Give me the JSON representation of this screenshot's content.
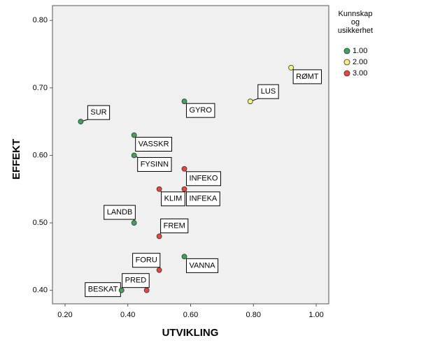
{
  "chart_data": {
    "type": "scatter",
    "xlabel": "UTVIKLING",
    "ylabel": "EFFEKT",
    "legend_title": [
      "Kunnskap",
      "og",
      "usikkerhet"
    ],
    "legend_position": "right",
    "xlim": [
      0.16,
      1.04
    ],
    "ylim": [
      0.38,
      0.822
    ],
    "xticks": [
      {
        "value": 0.2,
        "label": "0.20"
      },
      {
        "value": 0.4,
        "label": "0.40"
      },
      {
        "value": 0.6,
        "label": "0.60"
      },
      {
        "value": 0.8,
        "label": "0.80"
      },
      {
        "value": 1.0,
        "label": "1.00"
      }
    ],
    "yticks": [
      {
        "value": 0.4,
        "label": "0.40"
      },
      {
        "value": 0.5,
        "label": "0.50"
      },
      {
        "value": 0.6,
        "label": "0.60"
      },
      {
        "value": 0.7,
        "label": "0.70"
      },
      {
        "value": 0.8,
        "label": "0.80"
      }
    ],
    "series": [
      {
        "name": "1.00",
        "color": "#3ca45a",
        "labels": [
          "SUR",
          "VASSKR",
          "FYSINN",
          "LANDB",
          "BESKAT",
          "GYRO",
          "VANNA"
        ],
        "x": [
          0.25,
          0.42,
          0.42,
          0.42,
          0.38,
          0.58,
          0.58
        ],
        "y": [
          0.65,
          0.63,
          0.6,
          0.5,
          0.4,
          0.68,
          0.45
        ]
      },
      {
        "name": "2.00",
        "color": "#f7f07a",
        "labels": [
          "LUS",
          "RØMT"
        ],
        "x": [
          0.79,
          0.92
        ],
        "y": [
          0.68,
          0.73
        ]
      },
      {
        "name": "3.00",
        "color": "#e8463c",
        "labels": [
          "INFEKO",
          "INFEKA",
          "KLIM",
          "FREM",
          "FORU",
          "PRED"
        ],
        "x": [
          0.58,
          0.58,
          0.5,
          0.5,
          0.5,
          0.46
        ],
        "y": [
          0.58,
          0.55,
          0.55,
          0.48,
          0.43,
          0.4
        ]
      }
    ]
  }
}
